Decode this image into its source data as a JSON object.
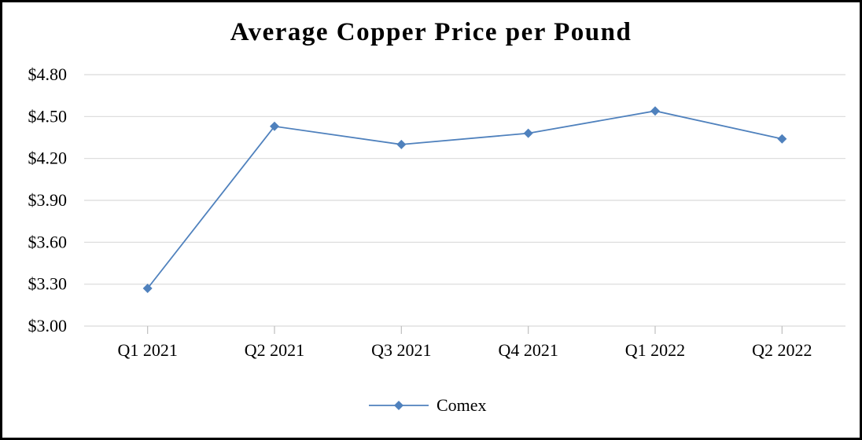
{
  "chart_data": {
    "type": "line",
    "title": "Average Copper Price per Pound",
    "xlabel": "",
    "ylabel": "",
    "categories": [
      "Q1 2021",
      "Q2 2021",
      "Q3 2021",
      "Q4 2021",
      "Q1 2022",
      "Q2 2022"
    ],
    "series": [
      {
        "name": "Comex",
        "values": [
          3.27,
          4.43,
          4.3,
          4.38,
          4.54,
          4.34
        ],
        "color": "#4f81bd",
        "marker": "diamond"
      }
    ],
    "ylim": [
      3.0,
      4.8
    ],
    "yticks": [
      3.0,
      3.3,
      3.6,
      3.9,
      4.2,
      4.5,
      4.8
    ],
    "ytick_labels": [
      "$3.00",
      "$3.30",
      "$3.60",
      "$3.90",
      "$4.20",
      "$4.50",
      "$4.80"
    ],
    "grid": true,
    "legend_position": "bottom"
  }
}
